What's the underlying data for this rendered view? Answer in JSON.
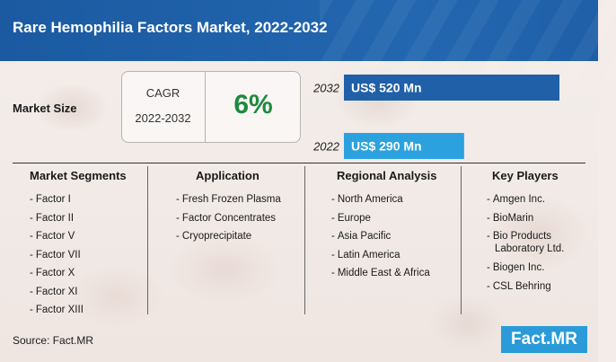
{
  "header": {
    "title": "Rare Hemophilia Factors Market, 2022-2032"
  },
  "market_size": {
    "label": "Market Size",
    "cagr_label": "CAGR",
    "cagr_period": "2022-2032",
    "cagr_value": "6%"
  },
  "chart_data": {
    "type": "bar",
    "orientation": "horizontal",
    "categories": [
      "2032",
      "2022"
    ],
    "values": [
      520,
      290
    ],
    "value_labels": [
      "US$ 520 Mn",
      "US$ 290 Mn"
    ],
    "unit": "US$ Mn",
    "colors": [
      "#2060a8",
      "#2ba2df"
    ],
    "xlim": [
      0,
      520
    ]
  },
  "columns": [
    {
      "title": "Market Segments",
      "items": [
        "Factor I",
        "Factor II",
        "Factor V",
        "Factor VII",
        "Factor X",
        "Factor XI",
        "Factor XIII"
      ]
    },
    {
      "title": "Application",
      "items": [
        "Fresh Frozen Plasma",
        "Factor Concentrates",
        "Cryoprecipitate"
      ]
    },
    {
      "title": "Regional Analysis",
      "items": [
        "North America",
        "Europe",
        "Asia Pacific",
        "Latin America",
        "Middle East & Africa"
      ]
    },
    {
      "title": "Key Players",
      "items": [
        "Amgen Inc.",
        "BioMarin",
        "Bio Products Laboratory Ltd.",
        "Biogen Inc.",
        "CSL Behring"
      ]
    }
  ],
  "bullet": "-",
  "footer": {
    "source": "Source: Fact.MR",
    "logo_text": "Fact.MR"
  },
  "colors": {
    "header_blue": "#1f5fa8",
    "cagr_green": "#1c8a3e",
    "logo_blue": "#2a9bd8"
  }
}
